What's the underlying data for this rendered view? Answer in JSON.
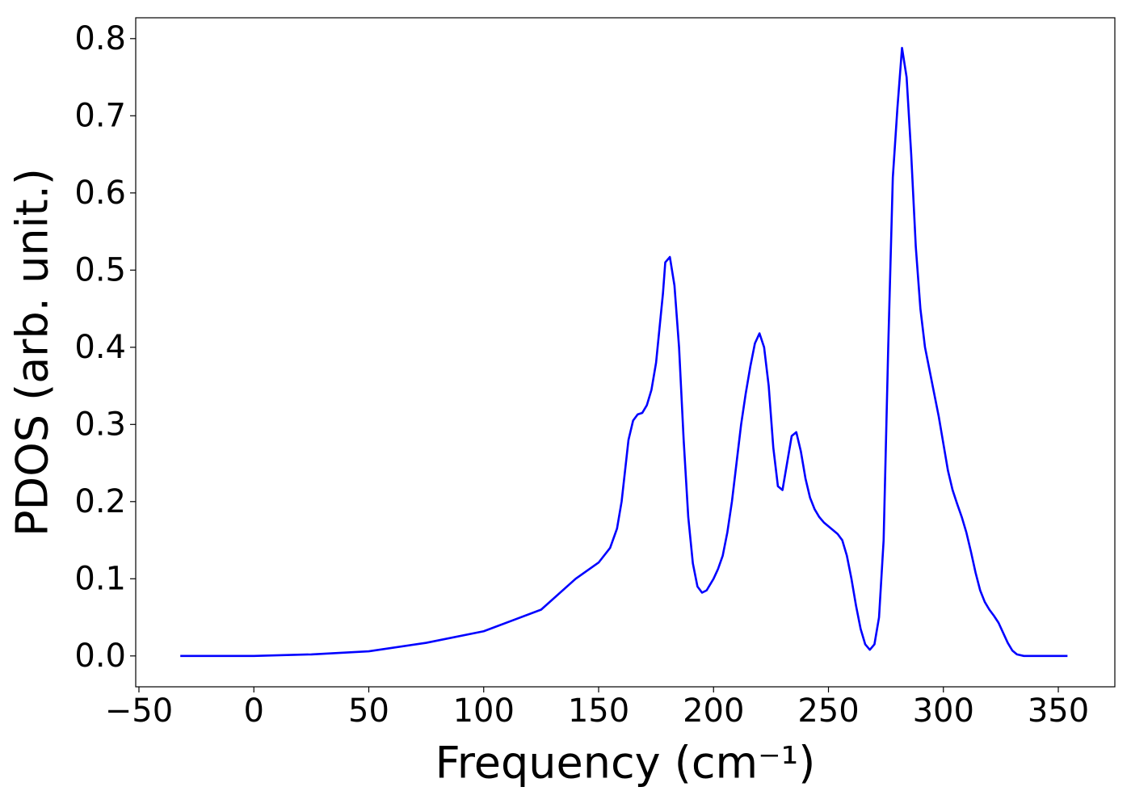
{
  "chart_data": {
    "type": "line",
    "xlabel": "Frequency (cm⁻¹)",
    "ylabel": "PDOS (arb. unit.)",
    "xlim": [
      -51.4,
      374.6
    ],
    "ylim": [
      -0.04,
      0.827
    ],
    "xticks": [
      {
        "value": -50,
        "label": "−50"
      },
      0,
      50,
      100,
      150,
      200,
      250,
      300,
      350
    ],
    "yticks": [
      {
        "value": 0,
        "label": "0.0"
      },
      0.1,
      0.2,
      0.3,
      0.4,
      0.5,
      0.6,
      0.7,
      0.8
    ],
    "grid": false,
    "series": [
      {
        "color": "#0000ff",
        "x": [
          -32,
          0,
          25,
          50,
          75,
          100,
          125,
          140,
          150,
          155,
          158,
          160,
          163,
          165,
          167,
          169,
          171,
          173,
          175,
          178,
          179,
          181,
          183,
          185,
          187,
          189,
          191,
          193,
          195,
          197,
          200,
          202,
          204,
          206,
          208,
          210,
          212,
          214,
          216,
          218,
          220,
          222,
          224,
          226,
          228,
          230,
          232,
          234,
          236,
          238,
          240,
          242,
          244,
          246,
          248,
          250,
          252,
          254,
          256,
          258,
          260,
          262,
          264,
          266,
          268,
          270,
          272,
          274,
          276,
          278,
          280,
          282,
          284,
          286,
          288,
          290,
          292,
          294,
          296,
          298,
          300,
          302,
          304,
          306,
          308,
          310,
          312,
          314,
          316,
          318,
          320,
          322,
          324,
          326,
          328,
          330,
          332,
          335,
          354
        ],
        "values": [
          0,
          0,
          0.002,
          0.006,
          0.017,
          0.032,
          0.06,
          0.1,
          0.121,
          0.14,
          0.165,
          0.2,
          0.28,
          0.305,
          0.313,
          0.315,
          0.325,
          0.345,
          0.38,
          0.47,
          0.51,
          0.517,
          0.48,
          0.4,
          0.28,
          0.18,
          0.12,
          0.09,
          0.082,
          0.085,
          0.1,
          0.113,
          0.13,
          0.16,
          0.2,
          0.25,
          0.3,
          0.34,
          0.375,
          0.405,
          0.418,
          0.4,
          0.35,
          0.27,
          0.22,
          0.215,
          0.25,
          0.285,
          0.29,
          0.265,
          0.23,
          0.205,
          0.19,
          0.18,
          0.173,
          0.168,
          0.163,
          0.158,
          0.15,
          0.13,
          0.1,
          0.065,
          0.035,
          0.015,
          0.008,
          0.015,
          0.05,
          0.15,
          0.4,
          0.62,
          0.71,
          0.788,
          0.75,
          0.65,
          0.53,
          0.45,
          0.4,
          0.37,
          0.34,
          0.31,
          0.275,
          0.24,
          0.215,
          0.197,
          0.18,
          0.16,
          0.135,
          0.108,
          0.085,
          0.07,
          0.06,
          0.052,
          0.043,
          0.03,
          0.017,
          0.007,
          0.002,
          0,
          0
        ]
      }
    ]
  }
}
